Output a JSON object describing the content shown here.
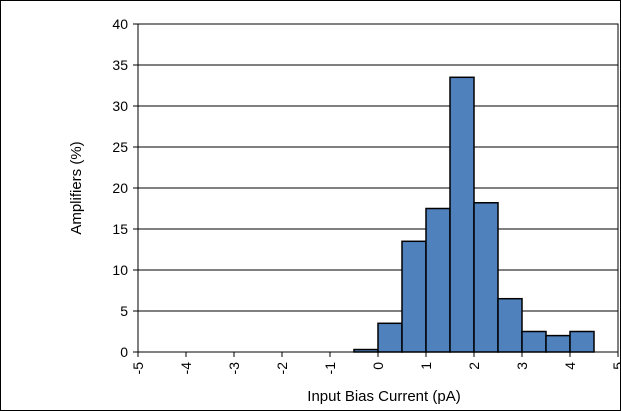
{
  "chart_data": {
    "type": "bar",
    "title": "",
    "xlabel": "Input Bias Current (pA)",
    "ylabel": "Amplifiers (%)",
    "xlim": [
      -5,
      5
    ],
    "ylim": [
      0,
      40
    ],
    "bin_width": 0.5,
    "x_ticks": [
      "-5",
      "-4",
      "-3",
      "-2",
      "-1",
      "0",
      "1",
      "2",
      "3",
      "4",
      "5"
    ],
    "y_ticks": [
      "0",
      "5",
      "10",
      "15",
      "20",
      "25",
      "30",
      "35",
      "40"
    ],
    "bins": [
      {
        "x0": -0.5,
        "x1": 0.0,
        "value": 0.3
      },
      {
        "x0": 0.0,
        "x1": 0.5,
        "value": 3.5
      },
      {
        "x0": 0.5,
        "x1": 1.0,
        "value": 13.5
      },
      {
        "x0": 1.0,
        "x1": 1.5,
        "value": 17.5
      },
      {
        "x0": 1.5,
        "x1": 2.0,
        "value": 33.5
      },
      {
        "x0": 2.0,
        "x1": 2.5,
        "value": 18.2
      },
      {
        "x0": 2.5,
        "x1": 3.0,
        "value": 6.5
      },
      {
        "x0": 3.0,
        "x1": 3.5,
        "value": 2.5
      },
      {
        "x0": 3.5,
        "x1": 4.0,
        "value": 2.0
      },
      {
        "x0": 4.0,
        "x1": 4.5,
        "value": 2.5
      }
    ],
    "grid": true,
    "bar_color": "#4f81bd"
  }
}
